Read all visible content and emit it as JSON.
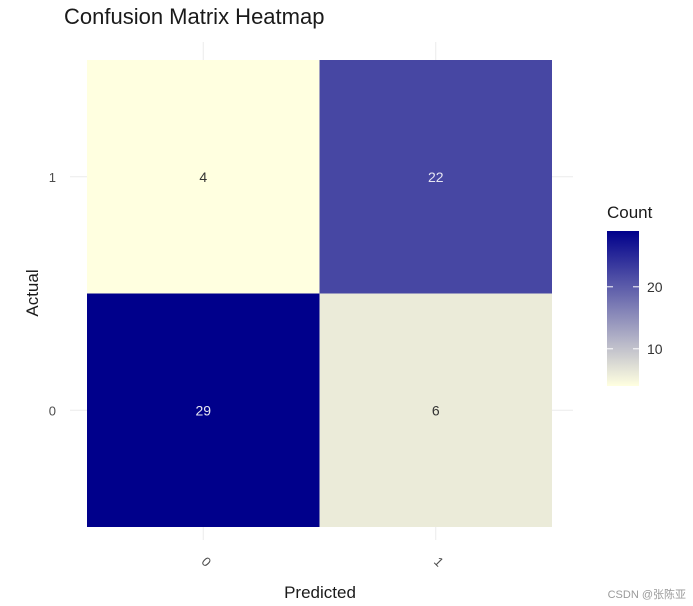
{
  "chart_data": {
    "type": "heatmap",
    "title": "Confusion Matrix Heatmap",
    "xlabel": "Predicted",
    "ylabel": "Actual",
    "x_categories": [
      "0",
      "1"
    ],
    "y_categories": [
      "0",
      "1"
    ],
    "cells": [
      {
        "predicted": "0",
        "actual": "1",
        "value": 4
      },
      {
        "predicted": "1",
        "actual": "1",
        "value": 22
      },
      {
        "predicted": "0",
        "actual": "0",
        "value": 29
      },
      {
        "predicted": "1",
        "actual": "0",
        "value": 6
      }
    ],
    "legend": {
      "title": "Count",
      "ticks": [
        10,
        20
      ],
      "range": [
        4,
        29
      ],
      "low_color": "#FFFFE0",
      "high_color": "#00008B",
      "placement": "right"
    },
    "grid": true,
    "x_tick_rotation": 45
  },
  "watermark": "CSDN @张陈亚"
}
